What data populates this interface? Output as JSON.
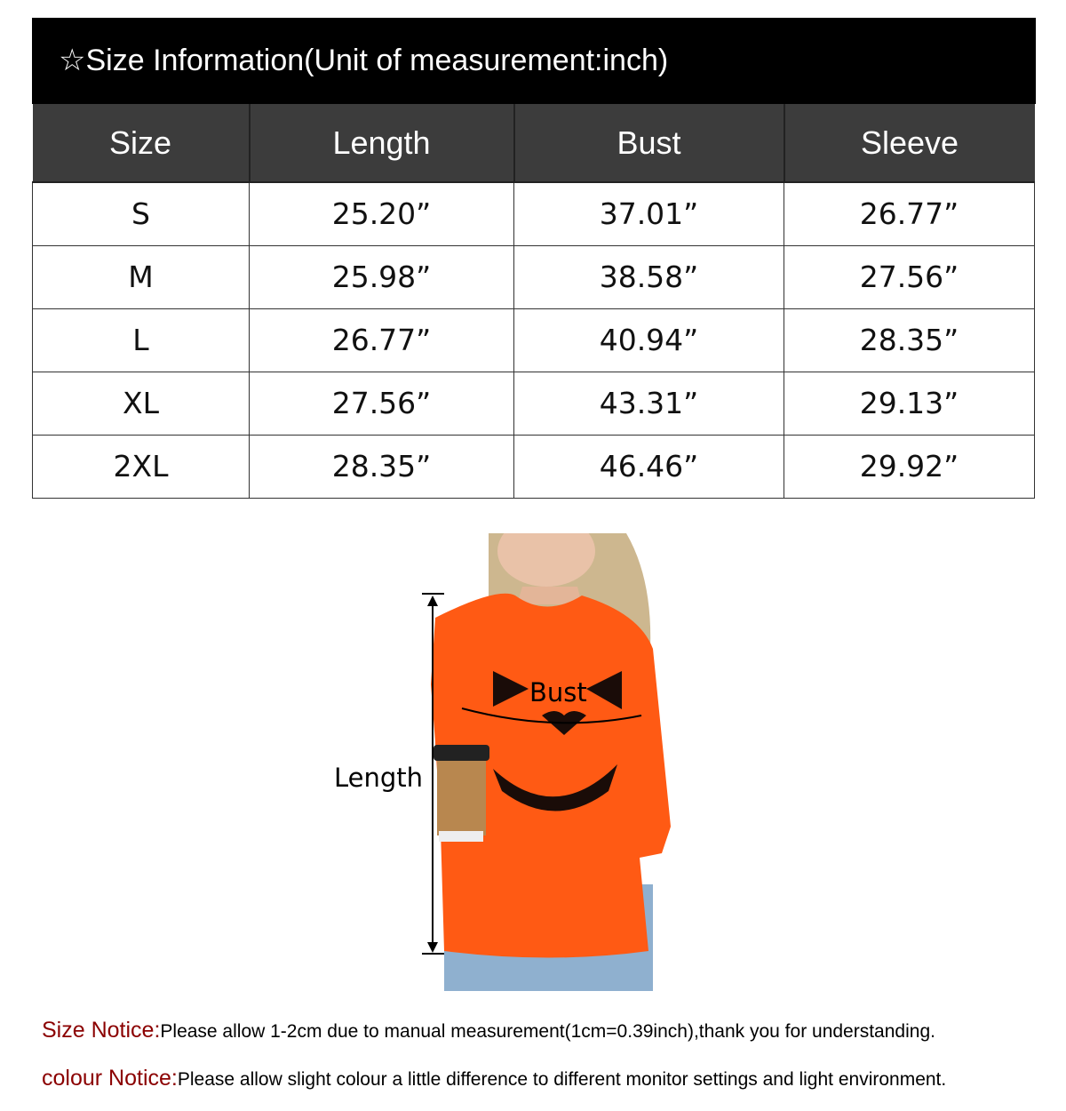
{
  "title": "☆Size Information(Unit of measurement:inch)",
  "table": {
    "headers": [
      "Size",
      "Length",
      "Bust",
      "Sleeve"
    ],
    "rows": [
      [
        "S",
        "25.20”",
        "37.01”",
        "26.77”"
      ],
      [
        "M",
        "25.98”",
        "38.58”",
        "27.56”"
      ],
      [
        "L",
        "26.77”",
        "40.94”",
        "28.35”"
      ],
      [
        "XL",
        "27.56”",
        "43.31”",
        "29.13”"
      ],
      [
        "2XL",
        "28.35”",
        "46.46”",
        "29.92”"
      ]
    ]
  },
  "figure": {
    "bust_label": "Bust",
    "length_label": "Length",
    "sweater_color": "#ff5a14"
  },
  "notices": [
    {
      "key": "Size Notice:",
      "text": "Please allow 1-2cm due to manual measurement(1cm=0.39inch),thank you for understanding."
    },
    {
      "key": "colour Notice:",
      "text": "Please allow slight colour a little difference to different monitor settings and light environment."
    }
  ],
  "colors": {
    "notice_key": "#8b0000",
    "header_bg": "#3c3c3c"
  }
}
